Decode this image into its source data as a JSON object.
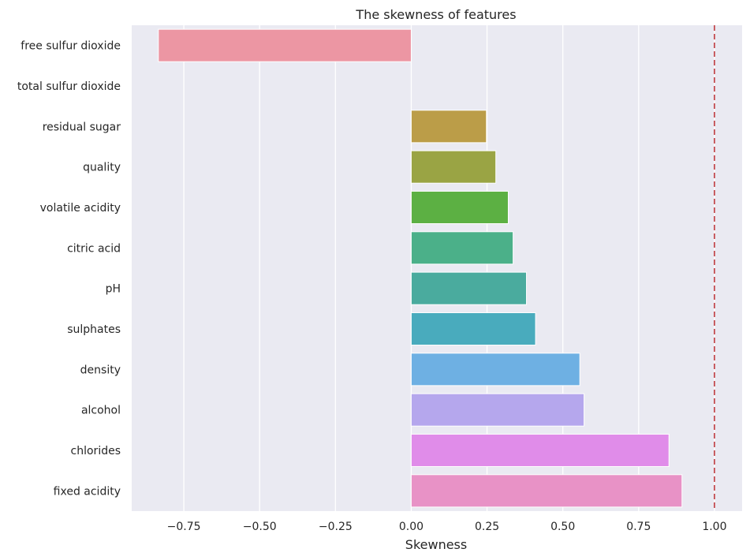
{
  "chart_data": {
    "type": "bar",
    "orientation": "horizontal",
    "title": "The skewness of features",
    "xlabel": "Skewness",
    "ylabel": "",
    "xlim": [
      -0.9,
      1.09
    ],
    "xticks": [
      -0.75,
      -0.5,
      -0.25,
      0.0,
      0.25,
      0.5,
      0.75,
      1.0
    ],
    "xtick_labels": [
      "−0.75",
      "−0.50",
      "−0.25",
      "0.00",
      "0.25",
      "0.50",
      "0.75",
      "1.00"
    ],
    "grid": true,
    "reference_line": {
      "x": 1.0,
      "style": "dashed",
      "color": "#c44e52"
    },
    "categories": [
      "free sulfur dioxide",
      "total sulfur dioxide",
      "residual sugar",
      "quality",
      "volatile acidity",
      "citric acid",
      "pH",
      "sulphates",
      "density",
      "alcohol",
      "chlorides",
      "fixed acidity"
    ],
    "values": [
      -0.834,
      0.0,
      0.248,
      0.279,
      0.32,
      0.336,
      0.38,
      0.41,
      0.556,
      0.57,
      0.85,
      0.893
    ],
    "colors": [
      "#ec96a3",
      "#e6a072",
      "#bb9d48",
      "#9aa444",
      "#5cb043",
      "#4bb089",
      "#4aab9e",
      "#49abbd",
      "#6eb0e3",
      "#b5a7ed",
      "#e08ce9",
      "#e892c6"
    ]
  },
  "style": {
    "plot_background": "#eaeaf2",
    "grid_color": "#ffffff",
    "text_color": "#262626"
  }
}
